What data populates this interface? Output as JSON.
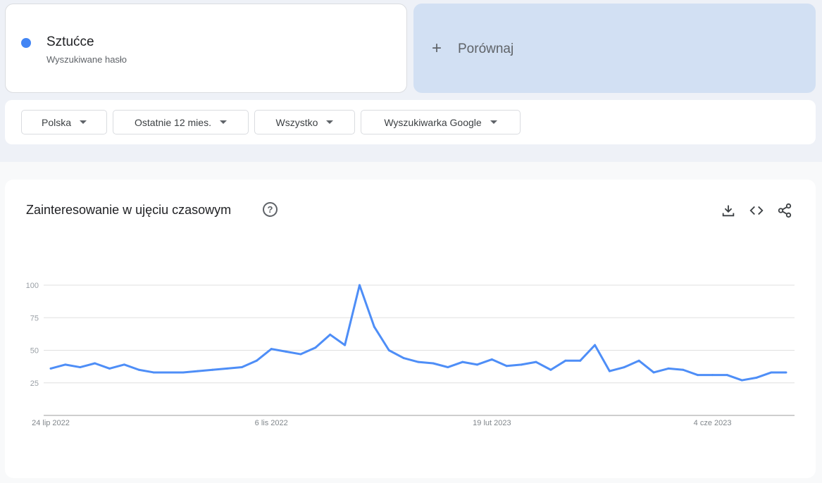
{
  "term": {
    "name": "Sztućce",
    "subtitle": "Wyszukiwane hasło",
    "color": "#4285f4"
  },
  "compare": {
    "label": "Porównaj",
    "icon": "plus-icon"
  },
  "filters": [
    {
      "label": "Polska"
    },
    {
      "label": "Ostatnie 12 mies."
    },
    {
      "label": "Wszystko"
    },
    {
      "label": "Wyszukiwarka Google"
    }
  ],
  "card": {
    "title": "Zainteresowanie w ujęciu czasowym",
    "help": "?",
    "icons": [
      "download-icon",
      "embed-icon",
      "share-icon"
    ]
  },
  "chart_data": {
    "type": "line",
    "title": "",
    "xlabel": "",
    "ylabel": "",
    "ylim": [
      0,
      100
    ],
    "yticks": [
      "25",
      "50",
      "75",
      "100"
    ],
    "ytick_values": [
      25,
      50,
      75,
      100
    ],
    "xticks": [
      {
        "label": "24 lip 2022",
        "index": 0
      },
      {
        "label": "6 lis 2022",
        "index": 15
      },
      {
        "label": "19 lut 2023",
        "index": 30
      },
      {
        "label": "4 cze 2023",
        "index": 45
      }
    ],
    "grid": true,
    "series": [
      {
        "color": "#4e8ef7",
        "values": [
          36,
          39,
          37,
          40,
          36,
          39,
          35,
          33,
          33,
          33,
          34,
          35,
          36,
          37,
          42,
          51,
          49,
          47,
          52,
          62,
          54,
          100,
          68,
          50,
          44,
          41,
          40,
          37,
          41,
          39,
          43,
          38,
          39,
          41,
          35,
          42,
          42,
          54,
          34,
          37,
          42,
          33,
          36,
          35,
          31,
          31,
          31,
          27,
          29,
          33,
          33
        ]
      }
    ]
  }
}
